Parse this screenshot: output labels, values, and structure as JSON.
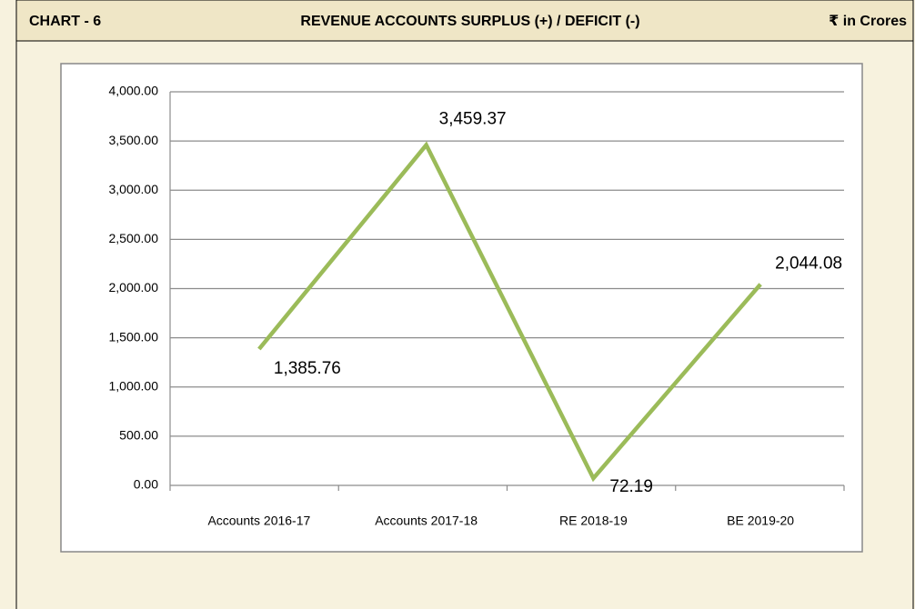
{
  "header": {
    "chart_number": "CHART - 6",
    "unit": "₹ in Crores"
  },
  "chart_data": {
    "type": "line",
    "title": "REVENUE ACCOUNTS SURPLUS (+) / DEFICIT (-)",
    "categories": [
      "Accounts 2016-17",
      "Accounts 2017-18",
      "RE 2018-19",
      "BE 2019-20"
    ],
    "values": [
      1385.76,
      3459.37,
      72.19,
      2044.08
    ],
    "value_labels": [
      "1,385.76",
      "3,459.37",
      "72.19",
      "2,044.08"
    ],
    "color": "#9bbb59",
    "ylim": [
      0,
      4000
    ],
    "yticks": [
      {
        "value": 0,
        "label": "0.00"
      },
      {
        "value": 500,
        "label": "500.00"
      },
      {
        "value": 1000,
        "label": "1,000.00"
      },
      {
        "value": 1500,
        "label": "1,500.00"
      },
      {
        "value": 2000,
        "label": "2,000.00"
      },
      {
        "value": 2500,
        "label": "2,500.00"
      },
      {
        "value": 3000,
        "label": "3,000.00"
      },
      {
        "value": 3500,
        "label": "3,500.00"
      },
      {
        "value": 4000,
        "label": "4,000.00"
      }
    ],
    "grid": true
  }
}
